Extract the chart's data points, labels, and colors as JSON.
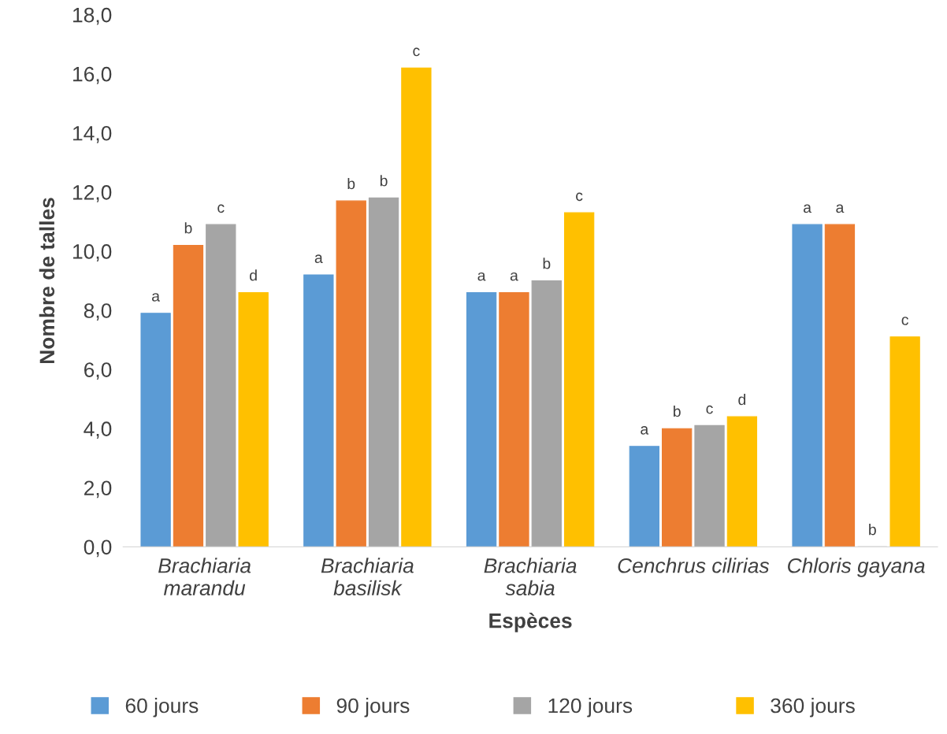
{
  "chart_data": {
    "type": "bar",
    "xlabel": "Espèces",
    "ylabel": "Nombre de talles",
    "categories": [
      "Brachiaria marandu",
      "Brachiaria basilisk",
      "Brachiaria sabia",
      "Cenchrus cilirias",
      "Chloris gayana"
    ],
    "series": [
      {
        "name": "60 jours",
        "color": "#5b9bd5",
        "values": [
          7.9,
          9.2,
          8.6,
          3.4,
          10.9
        ],
        "value_labels": [
          "a",
          "a",
          "a",
          "a",
          "a"
        ]
      },
      {
        "name": "90 jours",
        "color": "#ed7d31",
        "values": [
          10.2,
          11.7,
          8.6,
          4.0,
          10.9
        ],
        "value_labels": [
          "b",
          "b",
          "a",
          "b",
          "a"
        ]
      },
      {
        "name": "120 jours",
        "color": "#a5a5a5",
        "values": [
          10.9,
          11.8,
          9.0,
          4.1,
          0
        ],
        "value_labels": [
          "c",
          "b",
          "b",
          "c",
          "b"
        ]
      },
      {
        "name": "360 jours",
        "color": "#ffc000",
        "values": [
          8.6,
          16.2,
          11.3,
          4.4,
          7.1
        ],
        "value_labels": [
          "d",
          "c",
          "c",
          "d",
          "c"
        ]
      }
    ],
    "ylim": [
      0,
      18
    ],
    "yticks": [
      {
        "value": 0,
        "label": "0,0"
      },
      {
        "value": 2,
        "label": "2,0"
      },
      {
        "value": 4,
        "label": "4,0"
      },
      {
        "value": 6,
        "label": "6,0"
      },
      {
        "value": 8,
        "label": "8,0"
      },
      {
        "value": 10,
        "label": "10,0"
      },
      {
        "value": 12,
        "label": "12,0"
      },
      {
        "value": 14,
        "label": "14,0"
      },
      {
        "value": 16,
        "label": "16,0"
      },
      {
        "value": 18,
        "label": "18,0"
      }
    ],
    "grid": false,
    "legend": "bottom"
  }
}
